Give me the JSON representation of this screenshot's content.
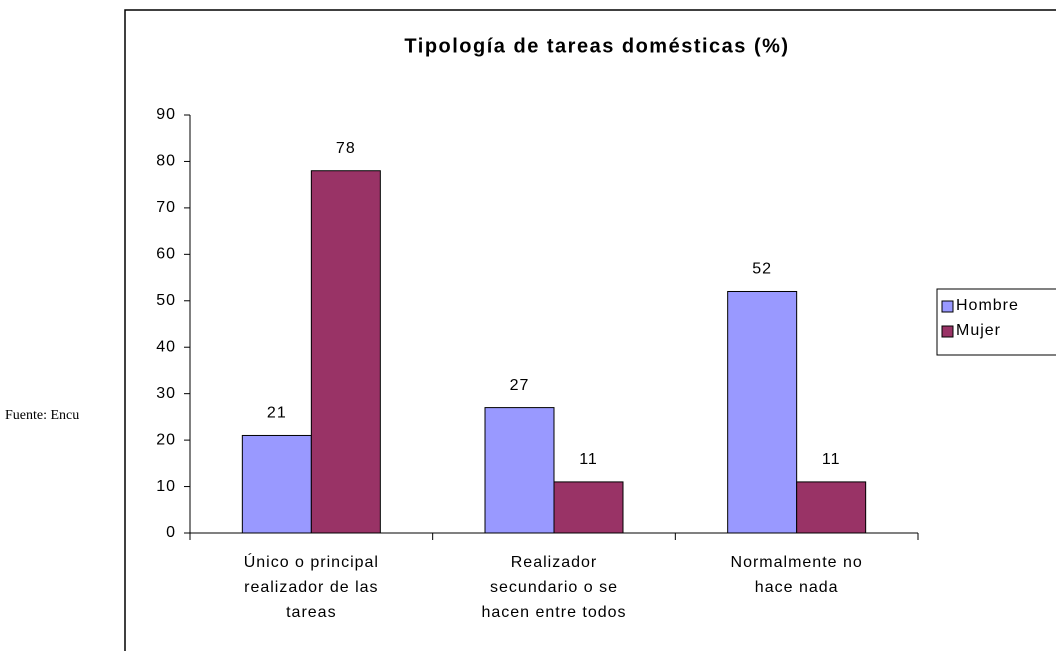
{
  "footnote": "Fuente: Encu",
  "chart_data": {
    "type": "bar",
    "title": "Tipología de tareas domésticas (%)",
    "categories": [
      [
        "Único o principal",
        "realizador de las",
        "tareas"
      ],
      [
        "Realizador",
        "secundario o se",
        "hacen entre todos"
      ],
      [
        "Normalmente no",
        "hace nada"
      ]
    ],
    "series": [
      {
        "name": "Hombre",
        "color": "#9999ff",
        "values": [
          21,
          27,
          52
        ]
      },
      {
        "name": "Mujer",
        "color": "#993366",
        "values": [
          78,
          11,
          11
        ]
      }
    ],
    "ylim": [
      0,
      90
    ],
    "yticks": [
      0,
      10,
      20,
      30,
      40,
      50,
      60,
      70,
      80,
      90
    ],
    "grid": false,
    "legend": "right"
  }
}
